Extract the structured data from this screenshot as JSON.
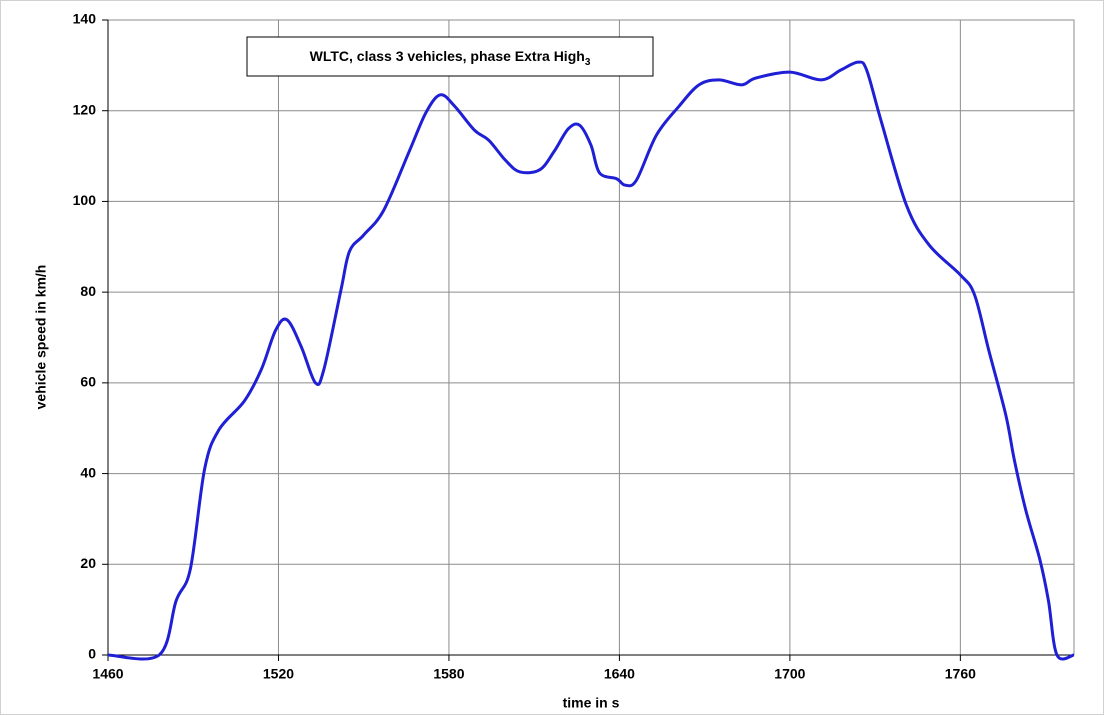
{
  "chart_data": {
    "type": "line",
    "title": "WLTC, class 3 vehicles, phase Extra High",
    "title_subscript": "3",
    "x_label": "time in s",
    "y_label": "vehicle speed in km/h",
    "x": [
      1460,
      1478,
      1484,
      1489,
      1494,
      1499,
      1508,
      1514,
      1519,
      1523,
      1528,
      1533,
      1536,
      1542,
      1545,
      1550,
      1557,
      1566,
      1572,
      1577,
      1582,
      1589,
      1594,
      1600,
      1605,
      1612,
      1617,
      1622,
      1626,
      1630,
      1633,
      1639,
      1642,
      1646,
      1653,
      1661,
      1668,
      1675,
      1683,
      1688,
      1700,
      1711,
      1718,
      1724,
      1727,
      1732,
      1741,
      1749,
      1760,
      1765,
      1770,
      1776,
      1779,
      1783,
      1788,
      1791,
      1794,
      1800
    ],
    "series": [
      {
        "name": "vehicle speed",
        "color": "#1f1fd6",
        "values": [
          0,
          0,
          12,
          19,
          41,
          49.6,
          56,
          63,
          71.6,
          73.9,
          68,
          60,
          63,
          80.5,
          89,
          92.6,
          98,
          111,
          119.7,
          123.5,
          121,
          115.7,
          113.5,
          109,
          106.5,
          107,
          111,
          116,
          116.8,
          112.4,
          106.3,
          105,
          103.6,
          104.7,
          114.6,
          121,
          125.7,
          126.8,
          125.7,
          127.2,
          128.5,
          126.8,
          129,
          130.7,
          129,
          118,
          99.2,
          90.4,
          83.8,
          79.4,
          67.2,
          52.9,
          43,
          32,
          21,
          12,
          0,
          0
        ]
      }
    ],
    "xlim": [
      1460,
      1800
    ],
    "xticks": [
      1460,
      1520,
      1580,
      1640,
      1700,
      1760
    ],
    "ylim": [
      0,
      140
    ],
    "yticks": [
      0,
      20,
      40,
      60,
      80,
      100,
      120,
      140
    ],
    "grid": true
  }
}
